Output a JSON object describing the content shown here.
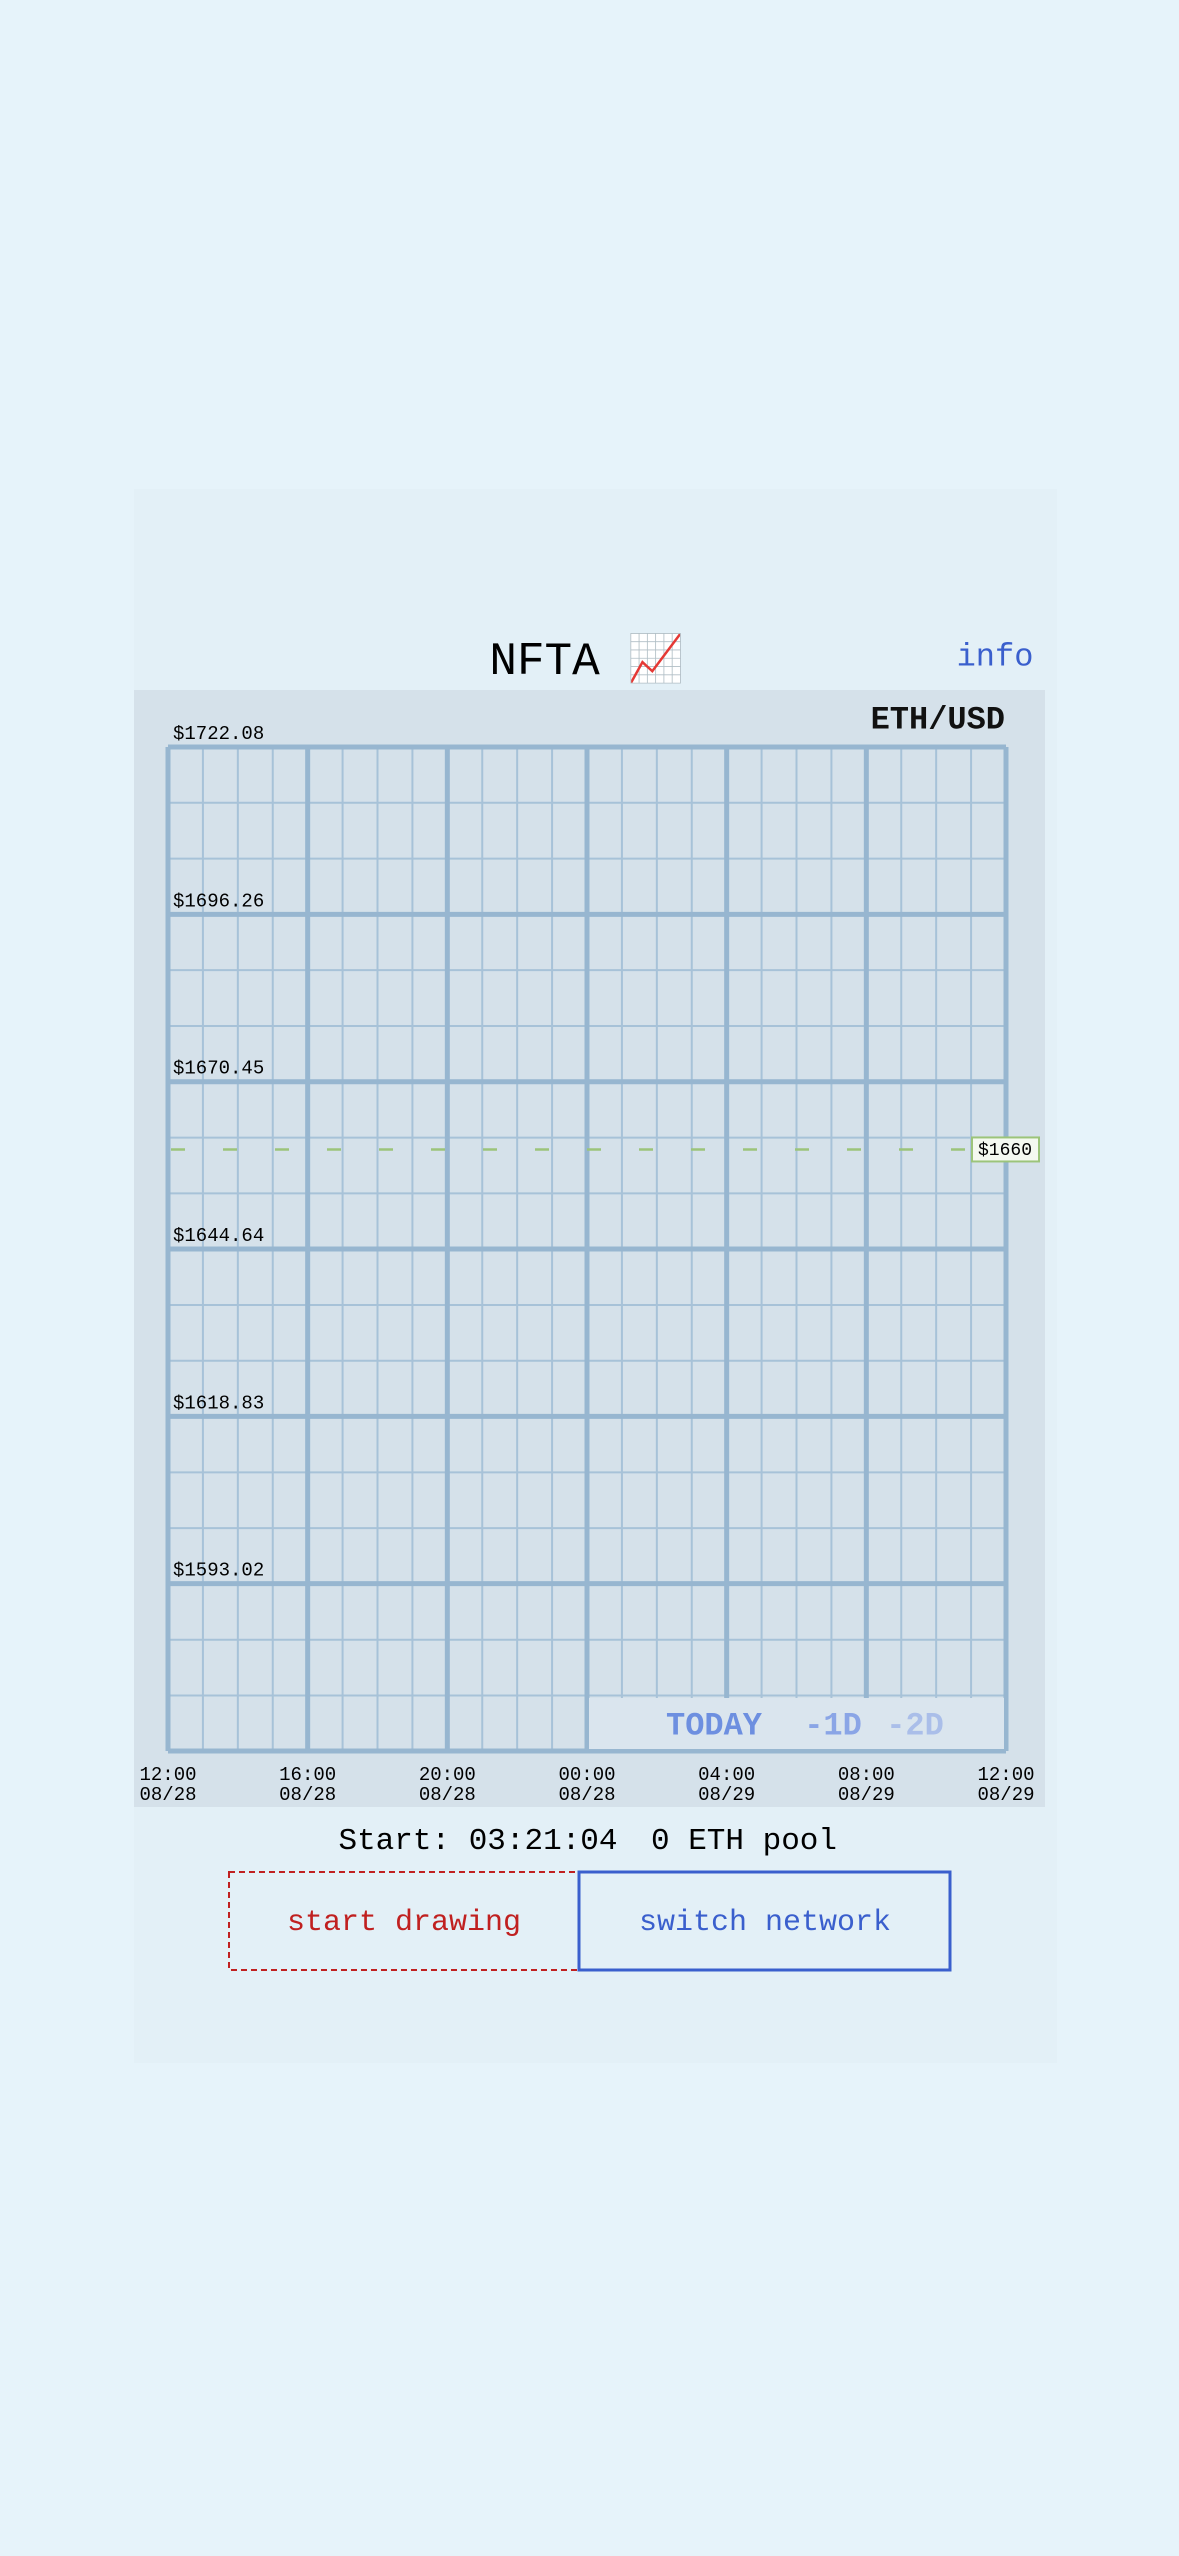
{
  "header": {
    "title": "NFTA 📈",
    "info": "info"
  },
  "chart_data": {
    "type": "price-grid",
    "pair": "ETH/USD",
    "ylim": [
      1567.21,
      1722.08
    ],
    "yticks": [
      {
        "value": 1722.08,
        "label": "$1722.08"
      },
      {
        "value": 1696.26,
        "label": "$1696.26"
      },
      {
        "value": 1670.45,
        "label": "$1670.45"
      },
      {
        "value": 1644.64,
        "label": "$1644.64"
      },
      {
        "value": 1618.83,
        "label": "$1618.83"
      },
      {
        "value": 1593.02,
        "label": "$1593.02"
      }
    ],
    "x_labels": [
      {
        "time": "12:00",
        "date": "08/28"
      },
      {
        "time": "16:00",
        "date": "08/28"
      },
      {
        "time": "20:00",
        "date": "08/28"
      },
      {
        "time": "00:00",
        "date": "08/28"
      },
      {
        "time": "04:00",
        "date": "08/29"
      },
      {
        "time": "08:00",
        "date": "08/29"
      },
      {
        "time": "12:00",
        "date": "08/29"
      }
    ],
    "price_line": {
      "value": 1660,
      "label": "$1660",
      "color": "#9cc47a"
    },
    "ranges": [
      "TODAY",
      "-1D",
      "-2D"
    ]
  },
  "status": {
    "start": "Start: 03:21:04",
    "pool": "0 ETH pool"
  },
  "buttons": [
    "start drawing",
    "switch network"
  ]
}
